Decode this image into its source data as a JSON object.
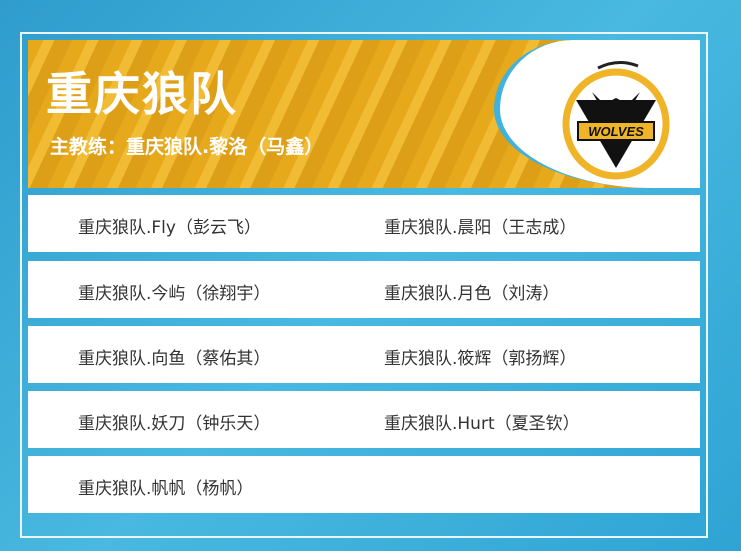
{
  "team": {
    "name": "重庆狼队",
    "coach": "主教练：重庆狼队.黎洛（马鑫）",
    "logo_text": "WOLVES"
  },
  "players": [
    [
      "重庆狼队.Fly（彭云飞）",
      "重庆狼队.晨阳（王志成）"
    ],
    [
      "重庆狼队.今屿（徐翔宇）",
      "重庆狼队.月色（刘涛）"
    ],
    [
      "重庆狼队.向鱼（蔡佑其）",
      "重庆狼队.筱辉（郭扬辉）"
    ],
    [
      "重庆狼队.妖刀（钟乐天）",
      "重庆狼队.Hurt（夏圣钦）"
    ],
    [
      "重庆狼队.帆帆（杨帆）",
      ""
    ]
  ],
  "colors": {
    "accent": "#f0b429",
    "background": "#3aaedb"
  }
}
